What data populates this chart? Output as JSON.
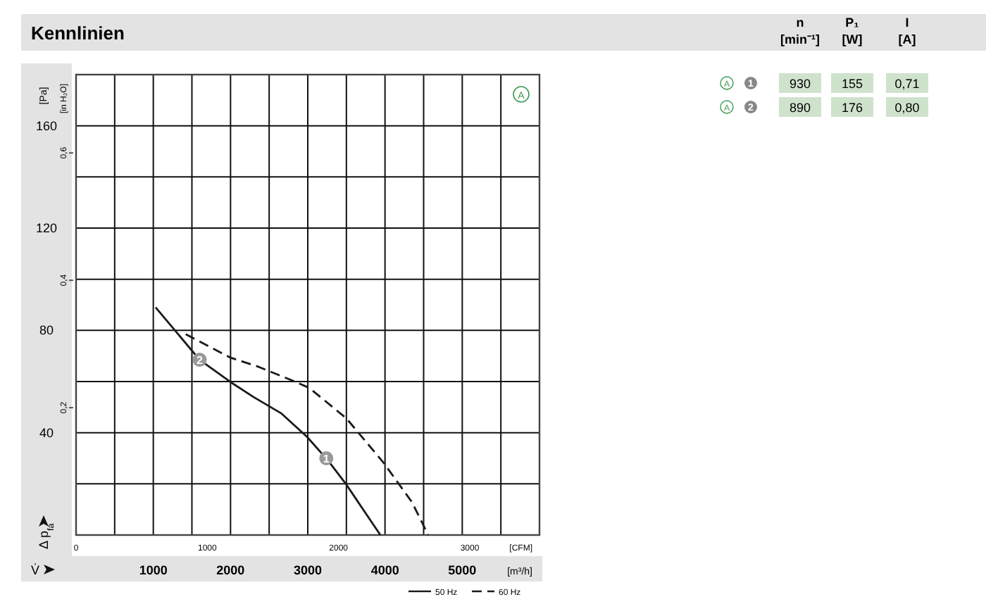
{
  "chart_data": [
    {
      "type": "line",
      "title": "Kennlinien",
      "xlabel": "[m³/h]",
      "ylabel": "[Pa]",
      "y2label": "[in H₂O]",
      "x2label": "[CFM]",
      "xlim": [
        0,
        6000
      ],
      "xticks": [
        {
          "value": 500,
          "label": null
        },
        1000,
        {
          "value": 1500,
          "label": null
        },
        2000,
        {
          "value": 2500,
          "label": null
        },
        3000,
        {
          "value": 3500,
          "label": null
        },
        4000,
        {
          "value": 4500,
          "label": null
        },
        5000,
        {
          "value": 5500,
          "label": null
        }
      ],
      "x2lim": [
        0,
        3531
      ],
      "x2ticks": [
        0,
        1000,
        2000,
        3000
      ],
      "ylim": [
        0,
        180
      ],
      "yticks": [
        {
          "value": 20,
          "label": null
        },
        40,
        {
          "value": 60,
          "label": null
        },
        80,
        {
          "value": 100,
          "label": null
        },
        120,
        {
          "value": 140,
          "label": null
        },
        160
      ],
      "y2lim": [
        0,
        0.723
      ],
      "y2ticks": [
        {
          "value": 0.2,
          "label": "0,2"
        },
        {
          "value": 0.4,
          "label": "0,4"
        },
        {
          "value": 0.6,
          "label": "0,6"
        }
      ],
      "grid": true,
      "legend": "bottom right",
      "series": [
        {
          "name": "50 Hz",
          "color": "#1a1a1a",
          "line_style": "solid",
          "x": [
            1030,
            1600,
            2025,
            2300,
            2660,
            2990,
            3260,
            3500,
            3940
          ],
          "values": [
            89,
            68.5,
            59.3,
            53.9,
            47.5,
            38.4,
            29.2,
            19.7,
            0
          ]
        },
        {
          "name": "60 Hz",
          "color": "#1a1a1a",
          "line_style": "dashed",
          "x": [
            1420,
            1995,
            2360,
            2840,
            3020,
            3500,
            3980,
            4350,
            4560
          ],
          "values": [
            78.5,
            69.4,
            65.8,
            59.9,
            57.5,
            45.6,
            28.3,
            12.8,
            0
          ]
        }
      ],
      "annotations": [
        "A",
        "V̇",
        "Δ p$_{fa}$",
        {
          "text": "1",
          "x": 3240,
          "y": 30
        },
        {
          "text": "2",
          "x": 1600,
          "y": 68.5
        }
      ]
    },
    {
      "type": "other",
      "annotations": [
        "n",
        "[min⁻¹]",
        "P₁",
        "[W]",
        "I",
        "[A]",
        "A",
        "1",
        "930",
        "155",
        "0,71",
        "A",
        "2",
        "890",
        "176",
        "0,80"
      ]
    }
  ]
}
